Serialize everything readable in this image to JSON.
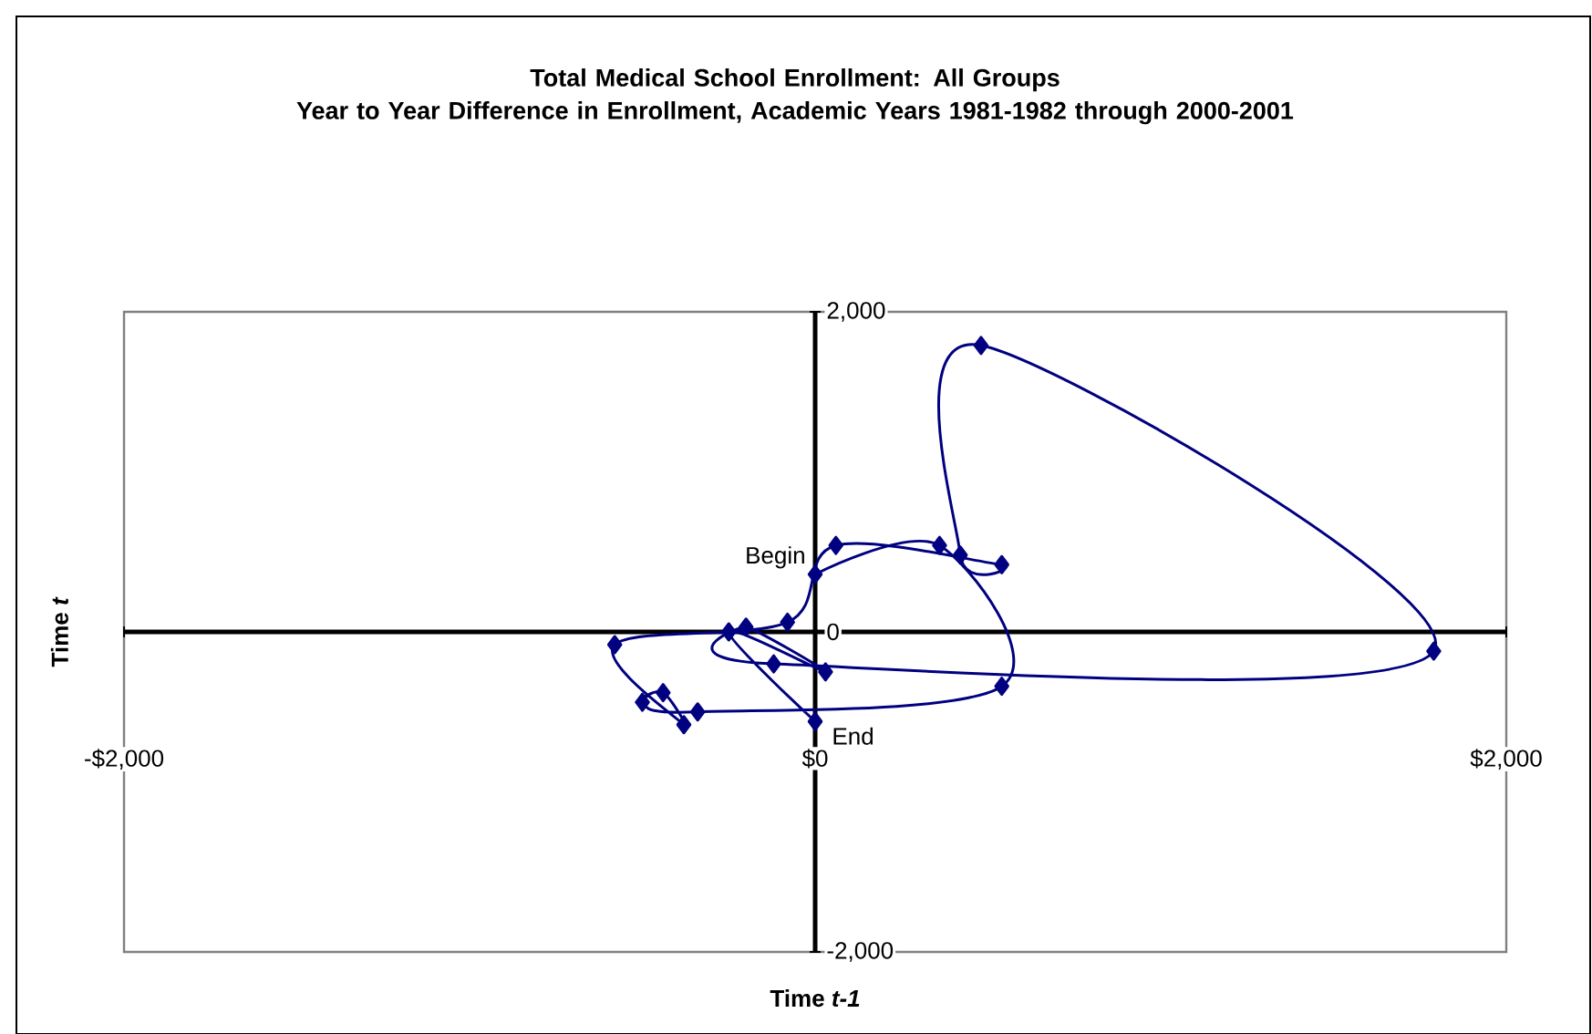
{
  "chart_data": {
    "type": "line",
    "title": "Total Medical School Enrollment:  All Groups",
    "subtitle": "Year to Year Difference in Enrollment,  Academic Years 1981-1982 through 2000-2001",
    "xlabel": "Time *t-1*",
    "ylabel": "Time *t*",
    "x": [
      0,
      360,
      540,
      -340,
      -500,
      -440,
      -380,
      -580,
      -80,
      60,
      540,
      420,
      480,
      1790,
      -120,
      -200,
      30,
      -250,
      0
    ],
    "series": [
      {
        "color": "#000080",
        "values": [
          360,
          540,
          -340,
          -500,
          -440,
          -380,
          -580,
          -80,
          60,
          540,
          420,
          480,
          1790,
          -120,
          -200,
          30,
          -250,
          0,
          -560
        ]
      }
    ],
    "marker": "diamond",
    "xlim": [
      -2000,
      2000
    ],
    "ylim": [
      -2000,
      2000
    ],
    "xticks": [
      {
        "value": -2000,
        "label": "-$2,000"
      },
      {
        "value": 0,
        "label": "$0"
      },
      {
        "value": 2000,
        "label": "$2,000"
      }
    ],
    "yticks": [
      {
        "value": -2000,
        "label": "-2,000"
      },
      0,
      {
        "value": 2000,
        "label": "2,000"
      }
    ],
    "annotations": [
      {
        "text": "Begin",
        "x": 0,
        "y": 360
      },
      {
        "text": "End",
        "x": 0,
        "y": -560
      }
    ]
  }
}
